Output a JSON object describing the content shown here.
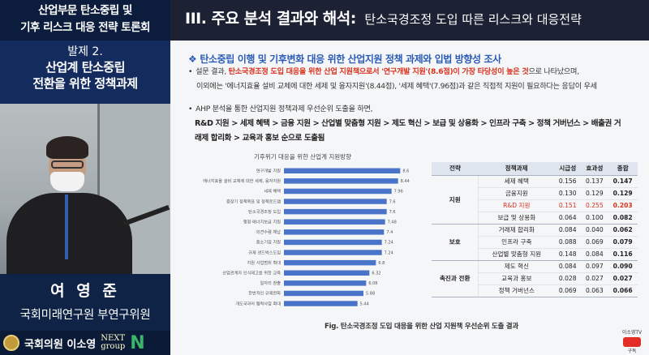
{
  "left_panel": {
    "conf_title": [
      "산업부문 탄소중립 및",
      "기후 리스크 대응 전략 토론회"
    ],
    "talk_no": "발제 2.",
    "talk_title": [
      "산업계 탄소중립",
      "전환을 위한 정책과제"
    ],
    "speaker_name": "여 영 준",
    "speaker_affil": "국회미래연구원 부연구위원",
    "logo_host": "국회의원 이소영",
    "logo_next": [
      "NEXT",
      "group"
    ],
    "logo_n": "N"
  },
  "slide": {
    "header_main": "III. 주요 분석 결과와 해석",
    "header_colon": ":",
    "header_sub": "탄소국경조정 도입 따른 리스크와 대응전략",
    "section_title": "탄소중립 이행 및 기후변화 대응 위한 산업지원 정책 과제와 입법 방향성 조사",
    "para1_a": "설문 결과, ",
    "para1_hl": "탄소국경조정 도입 대응을 위한 산업 지원책으로서 '연구개발 지원'(8.6점)이 가장 타당성이 높은 것",
    "para1_b": "으로 나타났으며,",
    "para1_line2": "이외에는 '에너지효율 설비 교체에 대한 세제 및 융자지원'(8.44점), '세제 혜택'(7.96점)과 같은 직접적 지원이 필요하다는 응답이 우세",
    "para2": "AHP 분석을 통한 산업지원 정책과제 우선순위 도출을 하면,",
    "priority": "R&D 지원 > 세제 혜택 > 금융 지원 > 산업별 맞춤형 지원 > 제도 혁신 > 보급 및 상용화 > 인프라 구축 > 정책 거버넌스 > 배출권 거래제 합리화 > 교육과 홍보 순으로 도출됨",
    "figure_caption": "Fig. 탄소국경조정 도입 대응을 위한 산업 지원책 우선순위 도출 결과",
    "yt_label": "이소영TV",
    "yt_btn": "구독"
  },
  "chart_data": {
    "type": "bar",
    "orientation": "horizontal",
    "title": "기후위기 대응을 위한 산업계 지원방향",
    "categories": [
      "연구개발 지원",
      "에너지효율 설비 교체에 대한 세제, 융자지원",
      "세제 혜택",
      "중장기 정책목표 및 정책로드맵",
      "탄소국경조정 도입",
      "행정·에너지보급 지원",
      "외견수렴 체납",
      "중소기업 지원",
      "규제 샌드박스도입",
      "지원 사업범위 확대",
      "산업관계자 인식제고를 위한 교육",
      "일자리 창출",
      "한번적인 규제완화",
      "개도국과의 협력사업 확대"
    ],
    "values": [
      8.6,
      8.44,
      7.96,
      7.6,
      7.6,
      7.48,
      7.4,
      7.24,
      7.24,
      6.8,
      6.32,
      6.08,
      5.88,
      5.44
    ],
    "value_labels": [
      "8.6",
      "8.44",
      "7.96",
      "7.6",
      "7.6",
      "7.48",
      "7.4",
      "7.24",
      "7.24",
      "6.8",
      "6.32",
      "6.08",
      "5.88",
      "5.44"
    ],
    "xlim": [
      0,
      9
    ],
    "bar_color": "#4a74c9"
  },
  "table": {
    "headers": [
      "전략",
      "정책과제",
      "시급성",
      "효과성",
      "종합"
    ],
    "groups": [
      {
        "name": "지원",
        "rows": [
          {
            "task": "세제 혜택",
            "u": "0.156",
            "e": "0.137",
            "t": "0.147",
            "red": false
          },
          {
            "task": "금융지원",
            "u": "0.130",
            "e": "0.129",
            "t": "0.129",
            "red": false
          },
          {
            "task": "R&D 지원",
            "u": "0.151",
            "e": "0.255",
            "t": "0.203",
            "red": true
          },
          {
            "task": "보급 및 상용화",
            "u": "0.064",
            "e": "0.100",
            "t": "0.082",
            "red": false
          }
        ]
      },
      {
        "name": "보호",
        "rows": [
          {
            "task": "거래제 합리화",
            "u": "0.084",
            "e": "0.040",
            "t": "0.062",
            "red": false
          },
          {
            "task": "인프라 구축",
            "u": "0.088",
            "e": "0.069",
            "t": "0.079",
            "red": false
          },
          {
            "task": "산업별 맞춤형 지원",
            "u": "0.148",
            "e": "0.084",
            "t": "0.116",
            "red": false
          }
        ]
      },
      {
        "name": "촉진과 전환",
        "rows": [
          {
            "task": "제도 혁신",
            "u": "0.084",
            "e": "0.097",
            "t": "0.090",
            "red": false
          },
          {
            "task": "교육과 홍보",
            "u": "0.028",
            "e": "0.027",
            "t": "0.027",
            "red": false
          },
          {
            "task": "정책 거버넌스",
            "u": "0.069",
            "e": "0.063",
            "t": "0.066",
            "red": false
          }
        ]
      }
    ]
  }
}
